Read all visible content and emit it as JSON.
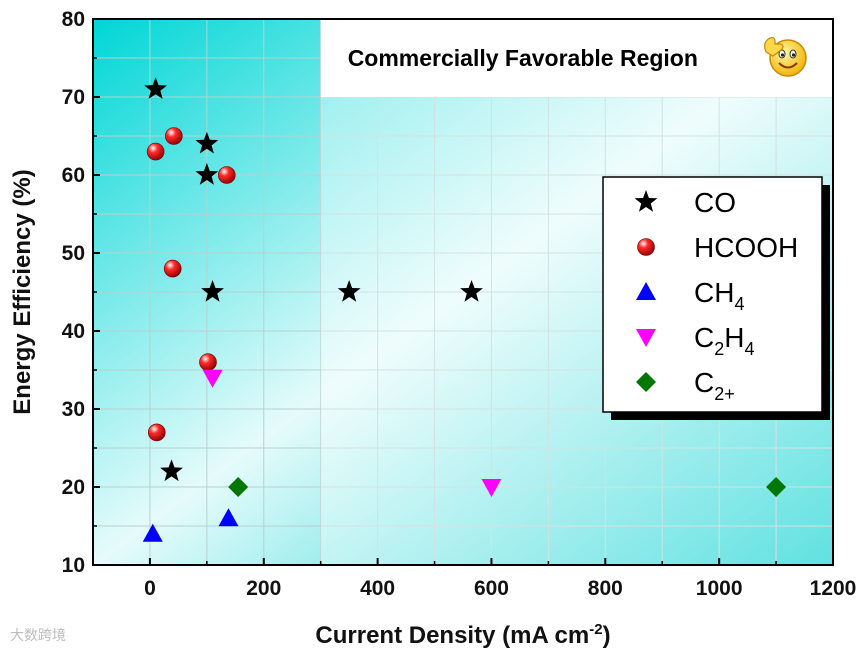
{
  "chart_data": {
    "type": "scatter",
    "title": "",
    "xlabel": "Current Density (mA cm",
    "xlabel_sup": "-2",
    "xlabel_end": ")",
    "ylabel": "Energy Efficiency (%)",
    "xlim": [
      -100,
      1200
    ],
    "ylim": [
      10,
      80
    ],
    "xticks": [
      0,
      200,
      400,
      600,
      800,
      1000,
      1200
    ],
    "yticks": [
      10,
      20,
      30,
      40,
      50,
      60,
      70,
      80
    ],
    "grid": true,
    "legend_position": "right",
    "annotation": "Commercially Favorable Region",
    "favorable_region": {
      "x": [
        300,
        1200
      ],
      "y": [
        10,
        70
      ]
    },
    "series": [
      {
        "name": "CO",
        "display": [
          "CO"
        ],
        "marker": "star",
        "color": "#000000",
        "points": [
          [
            10,
            71
          ],
          [
            100,
            64
          ],
          [
            100,
            60
          ],
          [
            110,
            45
          ],
          [
            350,
            45
          ],
          [
            565,
            45
          ],
          [
            38,
            22
          ]
        ]
      },
      {
        "name": "HCOOH",
        "display": [
          "HCOOH"
        ],
        "marker": "sphere",
        "color": "#ff0000",
        "points": [
          [
            10,
            63
          ],
          [
            42,
            65
          ],
          [
            135,
            60
          ],
          [
            40,
            48
          ],
          [
            102,
            36
          ],
          [
            12,
            27
          ]
        ]
      },
      {
        "name": "CH4",
        "display": [
          "CH",
          "4"
        ],
        "marker": "triangle-up",
        "color": "#0000ff",
        "points": [
          [
            5,
            14
          ],
          [
            138,
            16
          ]
        ]
      },
      {
        "name": "C2H4",
        "display": [
          "C",
          "2",
          "H",
          "4"
        ],
        "marker": "triangle-down",
        "color": "#ff00ff",
        "points": [
          [
            110,
            34
          ],
          [
            600,
            20
          ]
        ]
      },
      {
        "name": "C2+",
        "display": [
          "C",
          "2+"
        ],
        "marker": "diamond",
        "color": "#007700",
        "points": [
          [
            155,
            20
          ],
          [
            1100,
            20
          ]
        ]
      }
    ]
  },
  "watermark": "大数跨境",
  "icon": "thumbs-up-smiley-icon"
}
